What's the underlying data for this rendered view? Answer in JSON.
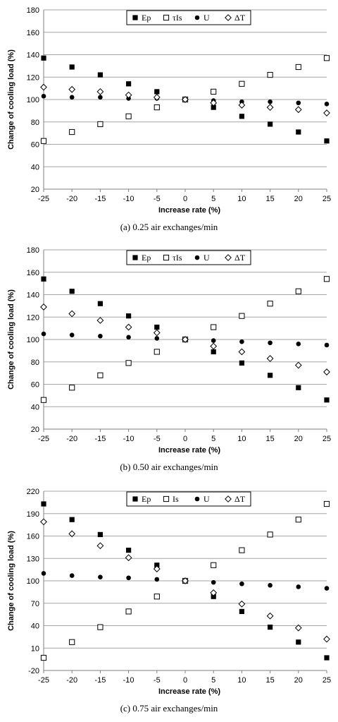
{
  "chart_data": [
    {
      "type": "scatter",
      "caption": "(a) 0.25 air exchanges/min",
      "xlabel": "Increase rate (%)",
      "ylabel": "Change of cooling load (%)",
      "xlim": [
        -25,
        25
      ],
      "ylim": [
        20,
        180
      ],
      "x": [
        -25,
        -20,
        -15,
        -10,
        -5,
        0,
        5,
        10,
        15,
        20,
        25
      ],
      "xticks": [
        "-25",
        "-20",
        "-15",
        "-10",
        "-5",
        "0",
        "5",
        "10",
        "15",
        "20",
        "25"
      ],
      "yticks": [
        "20",
        "40",
        "60",
        "80",
        "100",
        "120",
        "140",
        "160",
        "180"
      ],
      "grid": "horizontal",
      "legend_position": "top-center",
      "series": [
        {
          "name": "Ep",
          "marker": "filled-square",
          "values": [
            137,
            129,
            122,
            114,
            107,
            100,
            93,
            85,
            78,
            71,
            63
          ]
        },
        {
          "name": "τIs",
          "marker": "open-square",
          "values": [
            63,
            71,
            78,
            85,
            93,
            100,
            107,
            114,
            122,
            129,
            137
          ]
        },
        {
          "name": "U",
          "marker": "filled-circle",
          "values": [
            103,
            102,
            102,
            101,
            101,
            100,
            99,
            98,
            98,
            97,
            96
          ]
        },
        {
          "name": "ΔT",
          "marker": "open-diamond",
          "values": [
            111,
            109,
            107,
            104,
            102,
            100,
            97,
            95,
            93,
            91,
            88
          ]
        }
      ]
    },
    {
      "type": "scatter",
      "caption": "(b) 0.50 air exchanges/min",
      "xlabel": "Increase rate (%)",
      "ylabel": "Change of cooling load (%)",
      "xlim": [
        -25,
        25
      ],
      "ylim": [
        20,
        180
      ],
      "x": [
        -25,
        -20,
        -15,
        -10,
        -5,
        0,
        5,
        10,
        15,
        20,
        25
      ],
      "xticks": [
        "-25",
        "-20",
        "-15",
        "-10",
        "-5",
        "0",
        "5",
        "10",
        "15",
        "20",
        "25"
      ],
      "yticks": [
        "20",
        "40",
        "60",
        "80",
        "100",
        "120",
        "140",
        "160",
        "180"
      ],
      "grid": "horizontal",
      "legend_position": "top-center",
      "series": [
        {
          "name": "Ep",
          "marker": "filled-square",
          "values": [
            154,
            143,
            132,
            121,
            111,
            100,
            89,
            79,
            68,
            57,
            46
          ]
        },
        {
          "name": "τIs",
          "marker": "open-square",
          "values": [
            46,
            57,
            68,
            79,
            89,
            100,
            111,
            121,
            132,
            143,
            154
          ]
        },
        {
          "name": "U",
          "marker": "filled-circle",
          "values": [
            105,
            104,
            103,
            102,
            101,
            100,
            99,
            98,
            97,
            96,
            95
          ]
        },
        {
          "name": "ΔT",
          "marker": "open-diamond",
          "values": [
            129,
            123,
            117,
            111,
            106,
            100,
            94,
            89,
            83,
            77,
            71
          ]
        }
      ]
    },
    {
      "type": "scatter",
      "caption": "(c) 0.75 air exchanges/min",
      "xlabel": "Increase rate (%)",
      "ylabel": "Change of cooling load (%)",
      "xlim": [
        -25,
        25
      ],
      "ylim": [
        -20,
        220
      ],
      "x": [
        -25,
        -20,
        -15,
        -10,
        -5,
        0,
        5,
        10,
        15,
        20,
        25
      ],
      "xticks": [
        "-25",
        "-20",
        "-15",
        "-10",
        "-5",
        "0",
        "5",
        "10",
        "15",
        "20",
        "25"
      ],
      "yticks": [
        "-20",
        "10",
        "40",
        "70",
        "100",
        "130",
        "160",
        "190",
        "220"
      ],
      "grid": "horizontal",
      "legend_position": "top-center",
      "series": [
        {
          "name": "Ep",
          "marker": "filled-square",
          "values": [
            203,
            182,
            162,
            141,
            121,
            100,
            79,
            59,
            38,
            18,
            -3
          ]
        },
        {
          "name": "Is",
          "marker": "open-square",
          "values": [
            -3,
            18,
            38,
            59,
            79,
            100,
            121,
            141,
            162,
            182,
            203
          ]
        },
        {
          "name": "U",
          "marker": "filled-circle",
          "values": [
            110,
            107,
            105,
            104,
            102,
            100,
            98,
            96,
            94,
            92,
            90
          ]
        },
        {
          "name": "ΔT",
          "marker": "open-diamond",
          "values": [
            179,
            163,
            147,
            131,
            116,
            100,
            84,
            69,
            53,
            37,
            22
          ]
        }
      ]
    }
  ]
}
